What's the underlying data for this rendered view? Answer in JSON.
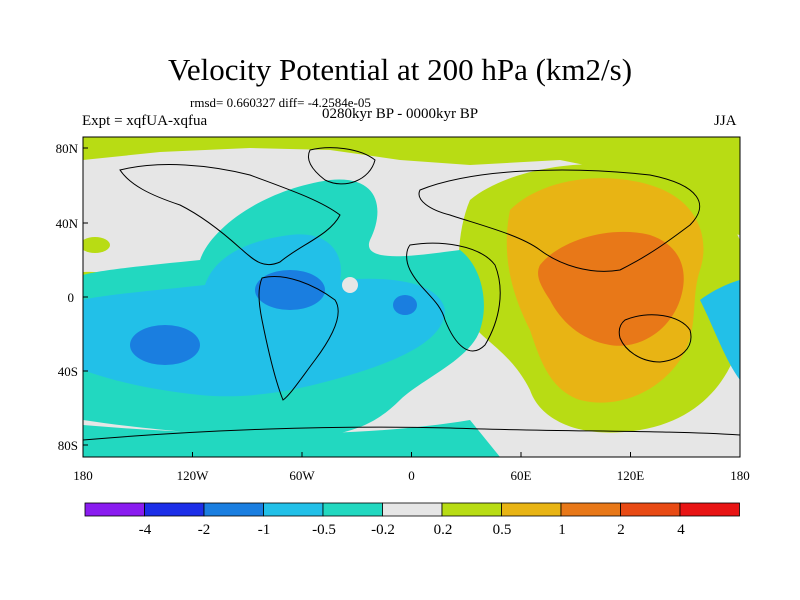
{
  "title": "Velocity Potential at 200 hPa (km2/s)",
  "stats": "rmsd= 0.660327 diff= -4.2584e-05",
  "experiment": "Expt = xqfUA-xqfua",
  "period": "0280kyr BP - 0000kyr BP",
  "season": "JJA",
  "lat_ticks": [
    "80N",
    "40N",
    "0",
    "40S",
    "80S"
  ],
  "lon_ticks": [
    "180",
    "120W",
    "60W",
    "0",
    "60E",
    "120E",
    "180"
  ],
  "colorbar": {
    "labels": [
      "-4",
      "-2",
      "-1",
      "-0.5",
      "-0.2",
      "0.2",
      "0.5",
      "1",
      "2",
      "4"
    ],
    "colors": [
      "#8a1cf0",
      "#1c2ee8",
      "#1a7ee0",
      "#22c0e8",
      "#22d8c0",
      "#e6e6e6",
      "#b8dc14",
      "#e8b414",
      "#e87818",
      "#e84a14",
      "#e81414"
    ]
  },
  "colors": {
    "neg_strong": "#1a7ee0",
    "neg_deep": "#1c2ee8",
    "neg_mid": "#22c0e8",
    "neg_weak": "#22d8c0",
    "neutral": "#e6e6e6",
    "pos_weak": "#b8dc14",
    "pos_mid": "#e8b414",
    "pos_strong": "#e87818"
  }
}
